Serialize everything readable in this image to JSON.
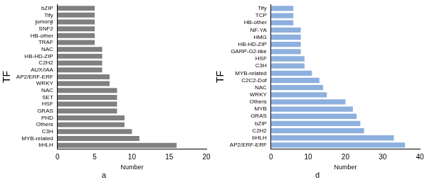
{
  "chart_data": [
    {
      "type": "bar",
      "orientation": "horizontal",
      "subtitle": "a",
      "x_label": "Number",
      "y_label": "TF",
      "categories": [
        "bZIP",
        "Tify",
        "jumonji",
        "SNF2",
        "HB-other",
        "TRAF",
        "NAC",
        "HB-HD-ZIP",
        "C2H2",
        "AUX/IAA",
        "AP2/ERF-ERF",
        "WRKY",
        "NAC",
        "SET",
        "HSF",
        "GRAS",
        "PHD",
        "Others",
        "C3H",
        "MYB-related",
        "bHLH"
      ],
      "values": [
        5,
        5,
        5,
        5,
        5,
        5,
        6,
        6,
        6,
        6,
        7,
        7,
        8,
        8,
        8,
        8,
        9,
        9,
        10,
        11,
        16
      ],
      "color": "#808080",
      "xlim": [
        0,
        20
      ],
      "xticks": [
        0,
        5,
        10,
        15,
        20
      ],
      "grid": false
    },
    {
      "type": "bar",
      "orientation": "horizontal",
      "subtitle": "d",
      "x_label": "Number",
      "y_label": "TF",
      "categories": [
        "Tify",
        "TCP",
        "HB-other",
        "NF-YA",
        "HMG",
        "HB-HD-ZIP",
        "GARP-G2-like",
        "HSF",
        "C3H",
        "MYB-related",
        "C2C2-Dof",
        "NAC",
        "WRKY",
        "Others",
        "MYB",
        "GRAS",
        "bZIP",
        "C2H2",
        "bHLH",
        "AP2/ERF-ERF"
      ],
      "values": [
        6,
        6,
        6,
        8,
        8,
        8,
        8,
        9,
        9,
        11,
        13,
        14,
        15,
        20,
        22,
        23,
        24,
        25,
        33,
        36
      ],
      "color": "#8db0de",
      "xlim": [
        0,
        40
      ],
      "xticks": [
        0,
        10,
        20,
        30,
        40
      ],
      "grid": false
    }
  ]
}
